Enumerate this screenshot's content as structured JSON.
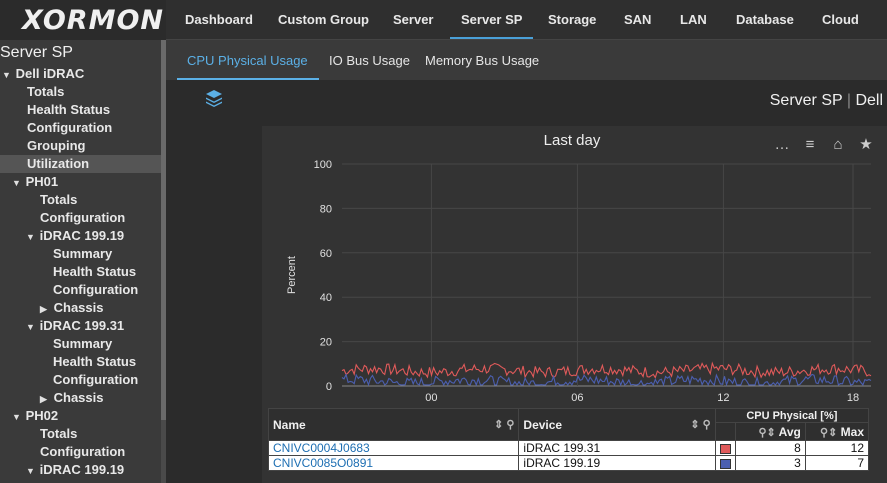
{
  "app": {
    "logo_text": "XORMON"
  },
  "sidebar": {
    "title": "Server SP",
    "tree": [
      {
        "label": "Dell iDRAC",
        "level": 0,
        "toggle": "▼"
      },
      {
        "label": "Totals",
        "level": 1,
        "toggle": ""
      },
      {
        "label": "Health Status",
        "level": 1,
        "toggle": ""
      },
      {
        "label": "Configuration",
        "level": 1,
        "toggle": ""
      },
      {
        "label": "Grouping",
        "level": 1,
        "toggle": ""
      },
      {
        "label": "Utilization",
        "level": 1,
        "toggle": "",
        "selected": true
      },
      {
        "label": "PH01",
        "level": 1,
        "toggle": "▼"
      },
      {
        "label": "Totals",
        "level": 2,
        "toggle": ""
      },
      {
        "label": "Configuration",
        "level": 2,
        "toggle": ""
      },
      {
        "label": "iDRAC 199.19",
        "level": 2,
        "toggle": "▼"
      },
      {
        "label": "Summary",
        "level": 3,
        "toggle": ""
      },
      {
        "label": "Health Status",
        "level": 3,
        "toggle": ""
      },
      {
        "label": "Configuration",
        "level": 3,
        "toggle": ""
      },
      {
        "label": "Chassis",
        "level": 3,
        "toggle": "▶"
      },
      {
        "label": "iDRAC 199.31",
        "level": 2,
        "toggle": "▼"
      },
      {
        "label": "Summary",
        "level": 3,
        "toggle": ""
      },
      {
        "label": "Health Status",
        "level": 3,
        "toggle": ""
      },
      {
        "label": "Configuration",
        "level": 3,
        "toggle": ""
      },
      {
        "label": "Chassis",
        "level": 3,
        "toggle": "▶"
      },
      {
        "label": "PH02",
        "level": 1,
        "toggle": "▼"
      },
      {
        "label": "Totals",
        "level": 2,
        "toggle": ""
      },
      {
        "label": "Configuration",
        "level": 2,
        "toggle": ""
      },
      {
        "label": "iDRAC 199.19",
        "level": 2,
        "toggle": "▼"
      }
    ]
  },
  "topnav": [
    {
      "label": "Dashboard"
    },
    {
      "label": "Custom Group"
    },
    {
      "label": "Server"
    },
    {
      "label": "Server SP",
      "active": true
    },
    {
      "label": "Storage"
    },
    {
      "label": "SAN"
    },
    {
      "label": "LAN"
    },
    {
      "label": "Database"
    },
    {
      "label": "Cloud"
    }
  ],
  "subnav": [
    {
      "label": "CPU Physical Usage",
      "active": true
    },
    {
      "label": "IO Bus Usage"
    },
    {
      "label": "Memory Bus Usage"
    }
  ],
  "content": {
    "heading_main": "Server SP",
    "heading_sep": "|",
    "heading_sub": "Dell"
  },
  "panel": {
    "title": "Last day",
    "tools": [
      "more-icon",
      "list-icon",
      "home-icon",
      "star-icon"
    ],
    "tools_glyphs": [
      "…",
      "≡",
      "⌂",
      "★"
    ]
  },
  "chart_data": {
    "type": "line",
    "title": "Last day",
    "ylabel": "Percent",
    "ylim": [
      0,
      100
    ],
    "yticks": [
      0,
      20,
      40,
      60,
      80,
      100
    ],
    "xticks": [
      "00",
      "06",
      "12",
      "18"
    ],
    "grid": true,
    "series": [
      {
        "name": "CNIVC0004J0683",
        "color": "#e05a5a",
        "avg": 8,
        "max": 12
      },
      {
        "name": "CNIVC0085O0891",
        "color": "#4b5fb0",
        "avg": 3,
        "max": 7
      }
    ]
  },
  "table": {
    "headers": {
      "name": "Name",
      "device": "Device",
      "group": "CPU Physical [%]",
      "avg": "Avg",
      "max": "Max"
    },
    "rows": [
      {
        "name": "CNIVC0004J0683",
        "device": "iDRAC 199.31",
        "color": "#e05a5a",
        "avg": "8",
        "max": "12"
      },
      {
        "name": "CNIVC0085O0891",
        "device": "iDRAC 199.19",
        "color": "#4b5fb0",
        "avg": "3",
        "max": "7"
      }
    ]
  }
}
